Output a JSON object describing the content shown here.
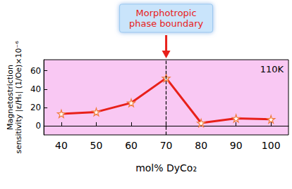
{
  "chart_data": {
    "type": "line",
    "x": [
      40,
      50,
      60,
      70,
      80,
      90,
      100
    ],
    "values": [
      13,
      15,
      25,
      52,
      3,
      8,
      7
    ],
    "color": "#e8201a",
    "marker": "star",
    "xlim": [
      35,
      105
    ],
    "xticks": [
      40,
      50,
      60,
      70,
      80,
      90,
      100
    ],
    "ylim": [
      -10,
      72
    ],
    "yticks": [
      0,
      20,
      40,
      60
    ],
    "xlabel": "mol% DyCo₂",
    "ylabel": "Magnetostriction\nsensitivity |ε/Hₛ| (1/Oe)×10⁻⁶",
    "annotations": [
      {
        "text": "110K"
      },
      {
        "text": "Morphotropic\nphase boundary",
        "x": 70
      }
    ],
    "grid": false
  }
}
